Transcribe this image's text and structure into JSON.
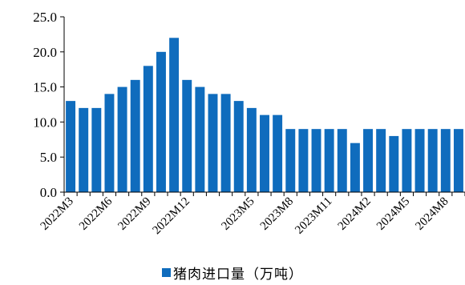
{
  "chart_data": {
    "type": "bar",
    "title": "",
    "xlabel": "",
    "ylabel": "",
    "ylim": [
      0,
      25
    ],
    "yticks": [
      "0.0",
      "5.0",
      "10.0",
      "15.0",
      "20.0",
      "25.0"
    ],
    "grid": false,
    "legend_position": "bottom",
    "color": "#0f6cbd",
    "categories": [
      "2022M3",
      "2022M4",
      "2022M5",
      "2022M6",
      "2022M7",
      "2022M8",
      "2022M9",
      "2022M10",
      "2022M11",
      "2022M12",
      "2023M1",
      "2023M2",
      "2023M3",
      "2023M4",
      "2023M5",
      "2023M6",
      "2023M7",
      "2023M8",
      "2023M9",
      "2023M10",
      "2023M11",
      "2023M12",
      "2024M1",
      "2024M2",
      "2024M3",
      "2024M4",
      "2024M5",
      "2024M6",
      "2024M7",
      "2024M8",
      "2024M9"
    ],
    "xtick_labels": [
      "2022M3",
      "2022M6",
      "2022M9",
      "2022M12",
      "2023M5",
      "2023M8",
      "2023M11",
      "2024M2",
      "2024M5",
      "2024M8"
    ],
    "series": [
      {
        "name": "猪肉进口量（万吨）",
        "values": [
          13,
          12,
          12,
          14,
          15,
          16,
          18,
          20,
          22,
          16,
          15,
          14,
          14,
          13,
          12,
          11,
          11,
          9,
          9,
          9,
          9,
          9,
          7,
          9,
          9,
          8,
          9,
          9,
          9,
          9,
          9
        ]
      }
    ]
  }
}
